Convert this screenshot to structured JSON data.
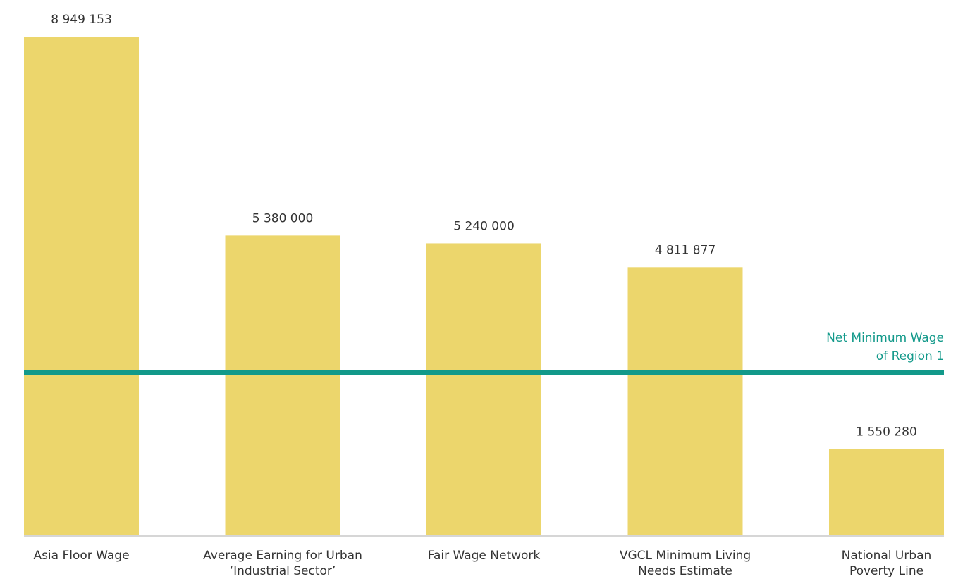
{
  "chart_data": {
    "type": "bar",
    "categories": [
      [
        "Asia Floor Wage"
      ],
      [
        "Average Earning for Urban",
        "‘Industrial Sector’"
      ],
      [
        "Fair Wage Network"
      ],
      [
        "VGCL Minimum Living",
        "Needs  Estimate"
      ],
      [
        "National Urban",
        "Poverty Line"
      ]
    ],
    "values": [
      8949153,
      5380000,
      5240000,
      4811877,
      1550280
    ],
    "value_labels": [
      "8 949 153",
      "5 380 000",
      "5 240 000",
      "4 811 877",
      "1 550 280"
    ],
    "ylim": [
      0,
      9000000
    ],
    "grid": false,
    "reference_line": {
      "value": 2920000,
      "label": [
        "Net Minimum Wage",
        "of Region 1"
      ],
      "color": "#12998a"
    },
    "colors": {
      "bar": "#ecd66c",
      "axis": "#d6d6d6"
    }
  }
}
